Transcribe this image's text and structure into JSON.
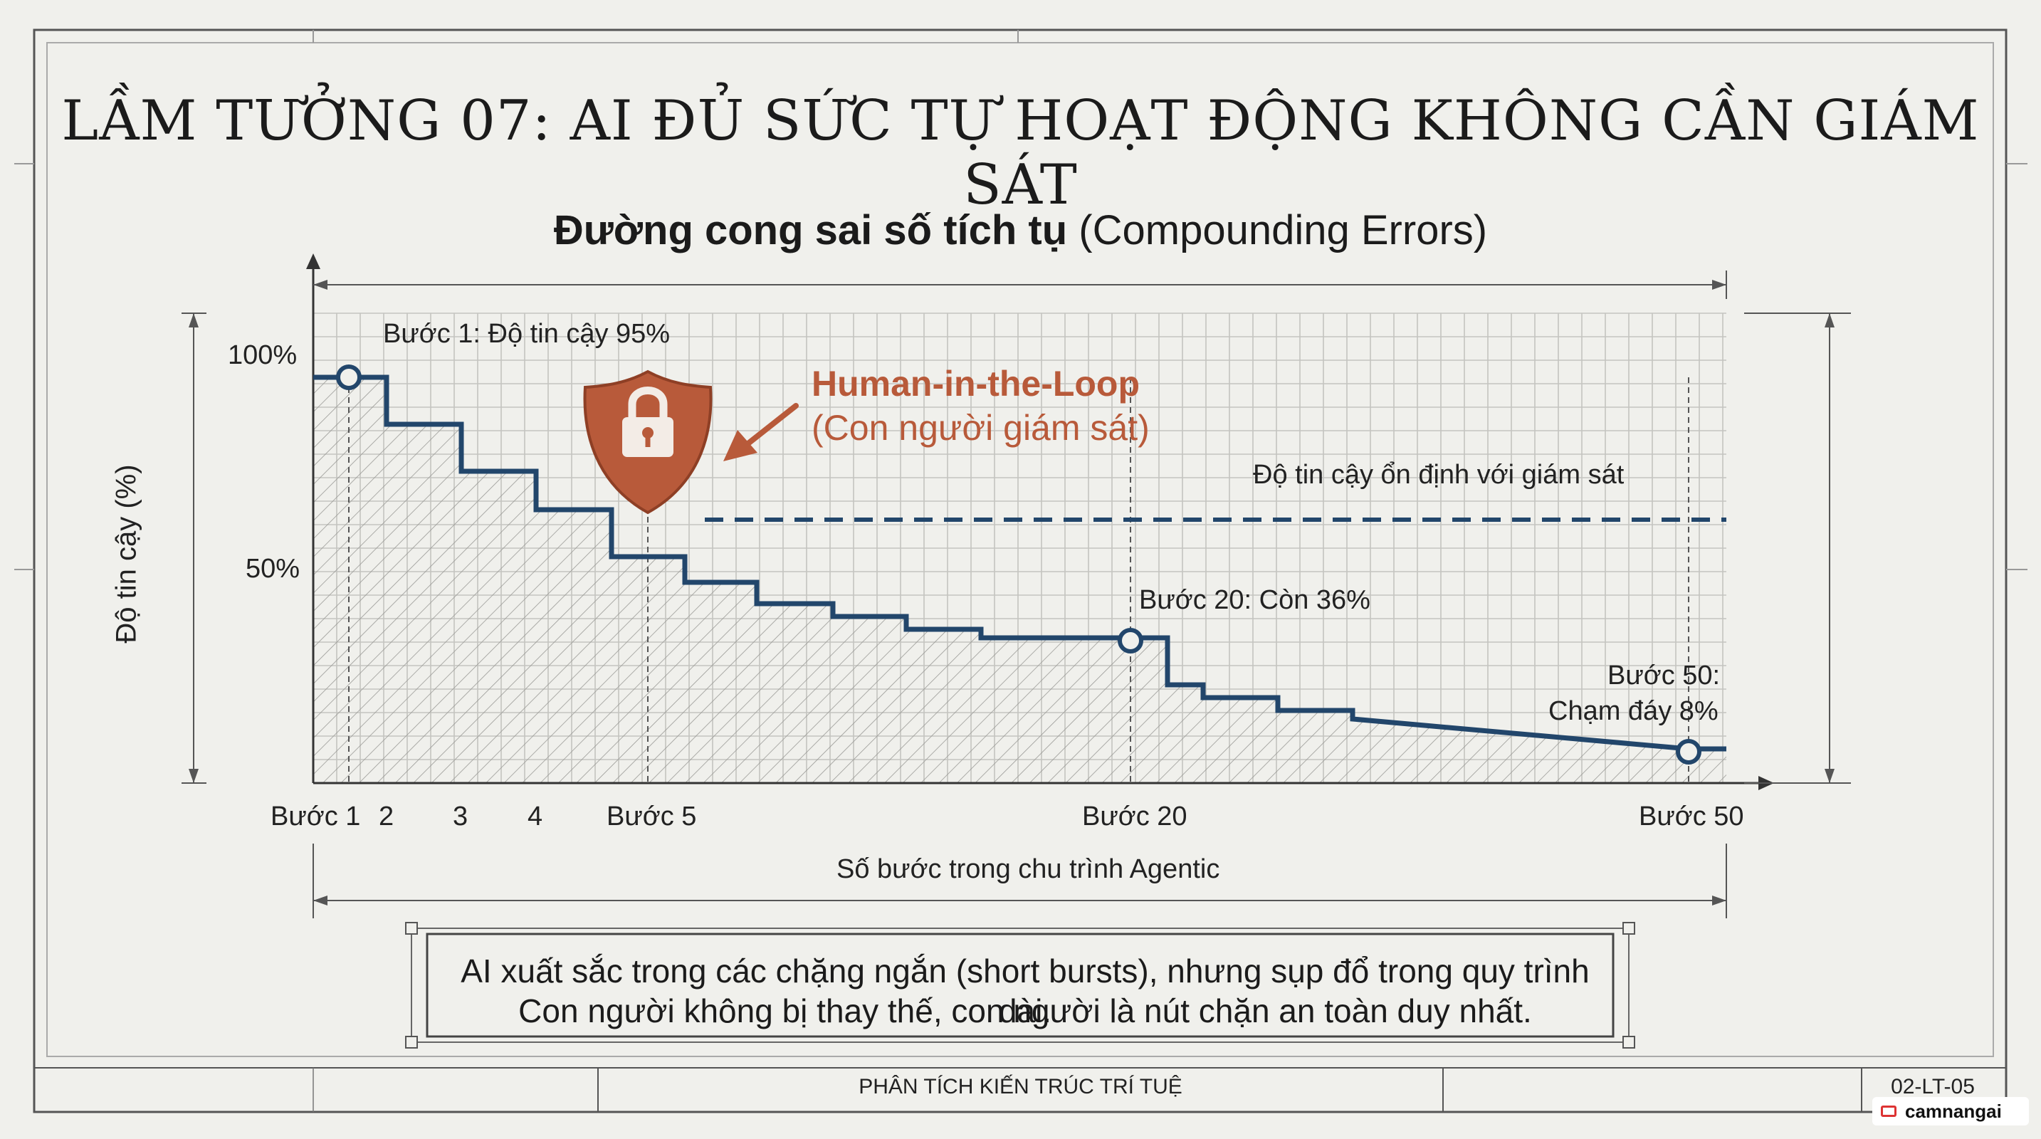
{
  "slide": {
    "title": "LẦM TƯỞNG 07: AI ĐỦ SỨC TỰ HOẠT ĐỘNG KHÔNG CẦN GIÁM SÁT",
    "footer_center": "PHÂN TÍCH KIẾN TRÚC TRÍ TUỆ",
    "footer_code": "02-LT-05",
    "watermark": "camnangai",
    "note_line1": "AI xuất sắc trong các chặng ngắn (short bursts), nhưng sụp đổ trong quy trình dài.",
    "note_line2": "Con người không bị thay thế, con người là nút chặn an toàn duy nhất."
  },
  "chart_data": {
    "type": "line",
    "title_bold": "Đường cong sai số tích tụ",
    "title_rest": "(Compounding Errors)",
    "ylabel": "Độ tin cậy (%)",
    "xlabel": "Số bước trong chu trình Agentic",
    "y_ticks": [
      "100%",
      "50%"
    ],
    "x_ticks": [
      "Bước 1",
      "2",
      "3",
      "4",
      "Bước 5",
      "Bước 20",
      "Bước 50"
    ],
    "series": [
      {
        "values_y": [
          95,
          84,
          73,
          64,
          53,
          47,
          42,
          39,
          36,
          34,
          34,
          23,
          20,
          17,
          15,
          8
        ]
      },
      {
        "name": "Độ tin cậy ổn định với giám sát",
        "value": 64
      }
    ],
    "annotations": {
      "step1": "Bước 1: Độ tin cậy 95%",
      "step20": "Bước 20: Còn 36%",
      "step50_line1": "Bước 50:",
      "step50_line2": "Chạm đáy 8%",
      "hitl_line1": "Human-in-the-Loop",
      "hitl_line2": "(Con người giám sát)"
    },
    "colors": {
      "line": "#22466b",
      "accent": "#b85a3a",
      "grid": "#c4c4c0"
    },
    "grid": true
  }
}
